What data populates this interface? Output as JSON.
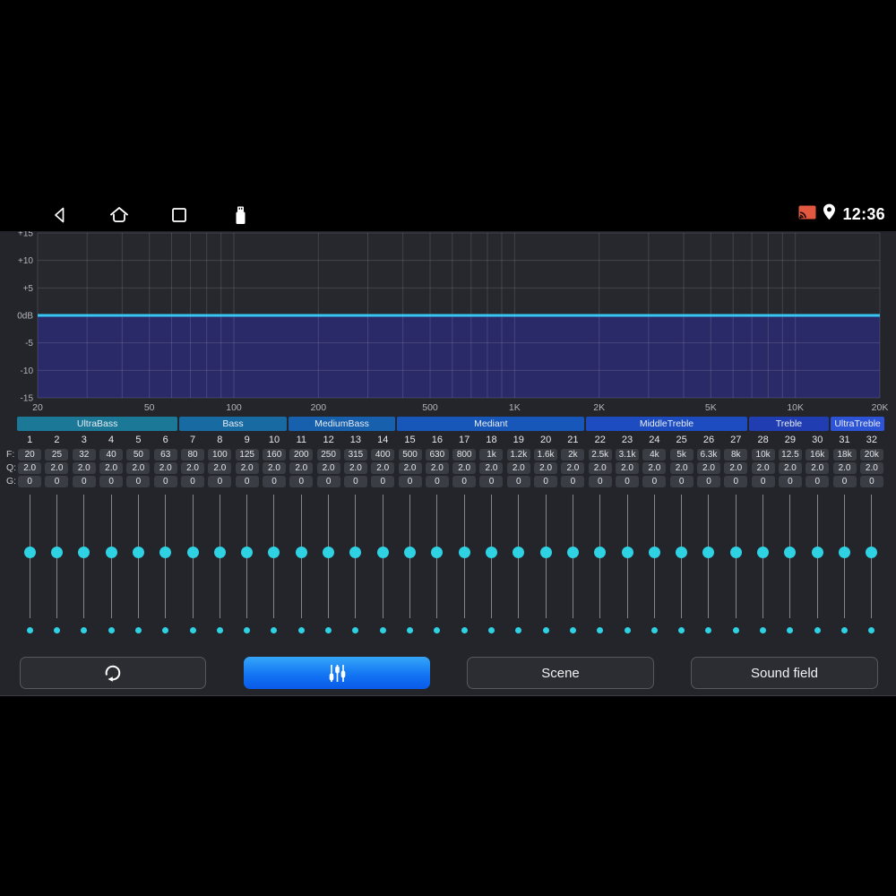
{
  "status_bar": {
    "time": "12:36",
    "left_icons": [
      "back-icon",
      "home-icon",
      "recents-icon",
      "usb-icon"
    ],
    "right_icons": [
      "cast-icon",
      "location-icon"
    ],
    "cast_icon_color": "#e2573f"
  },
  "eq_graph": {
    "db_ticks": [
      {
        "label": "+15",
        "value": 15
      },
      {
        "label": "+10",
        "value": 10
      },
      {
        "label": "+5",
        "value": 5
      },
      {
        "label": "0dB",
        "value": 0
      },
      {
        "label": "-5",
        "value": -5
      },
      {
        "label": "-10",
        "value": -10
      },
      {
        "label": "-15",
        "value": -15
      }
    ],
    "freq_ticks": [
      {
        "label": "20",
        "value": 20
      },
      {
        "label": "50",
        "value": 50
      },
      {
        "label": "100",
        "value": 100
      },
      {
        "label": "200",
        "value": 200
      },
      {
        "label": "500",
        "value": 500
      },
      {
        "label": "1K",
        "value": 1000
      },
      {
        "label": "2K",
        "value": 2000
      },
      {
        "label": "5K",
        "value": 5000
      },
      {
        "label": "10K",
        "value": 10000
      },
      {
        "label": "20K",
        "value": 20000
      }
    ],
    "minor_grid_freqs": [
      20,
      30,
      40,
      50,
      60,
      70,
      80,
      90,
      100,
      200,
      300,
      400,
      500,
      600,
      700,
      800,
      900,
      1000,
      2000,
      3000,
      4000,
      5000,
      6000,
      7000,
      8000,
      9000,
      10000,
      20000
    ],
    "freq_min": 20,
    "freq_max": 20000,
    "db_min": -15,
    "db_max": 15,
    "curve_db": 0,
    "curve_color": "#38c6f4",
    "fill_color": "#2b2a68",
    "plot_bg": "#26282e",
    "grid_color": "rgba(255,255,255,0.13)",
    "label_color": "#b2b5ba"
  },
  "band_groups": [
    {
      "label": "UltraBass",
      "span": 6,
      "color": "#1b7897"
    },
    {
      "label": "Bass",
      "span": 4,
      "color": "#186ba2"
    },
    {
      "label": "MediumBass",
      "span": 4,
      "color": "#1660ae"
    },
    {
      "label": "Mediant",
      "span": 7,
      "color": "#1757ba"
    },
    {
      "label": "MiddleTreble",
      "span": 6,
      "color": "#1c4cc0"
    },
    {
      "label": "Treble",
      "span": 3,
      "color": "#203eb2"
    },
    {
      "label": "UltraTreble",
      "span": 2,
      "color": "#2d53d6"
    }
  ],
  "band_table": {
    "row_labels": [
      "F:",
      "Q:",
      "G:"
    ],
    "numbers": [
      "1",
      "2",
      "3",
      "4",
      "5",
      "6",
      "7",
      "8",
      "9",
      "10",
      "11",
      "12",
      "13",
      "14",
      "15",
      "16",
      "17",
      "18",
      "19",
      "20",
      "21",
      "22",
      "23",
      "24",
      "25",
      "26",
      "27",
      "28",
      "29",
      "30",
      "31",
      "32"
    ],
    "f_values": [
      "20",
      "25",
      "32",
      "40",
      "50",
      "63",
      "80",
      "100",
      "125",
      "160",
      "200",
      "250",
      "315",
      "400",
      "500",
      "630",
      "800",
      "1k",
      "1.2k",
      "1.6k",
      "2k",
      "2.5k",
      "3.1k",
      "4k",
      "5k",
      "6.3k",
      "8k",
      "10k",
      "12.5",
      "16k",
      "18k",
      "20k"
    ],
    "q_values": [
      "2.0",
      "2.0",
      "2.0",
      "2.0",
      "2.0",
      "2.0",
      "2.0",
      "2.0",
      "2.0",
      "2.0",
      "2.0",
      "2.0",
      "2.0",
      "2.0",
      "2.0",
      "2.0",
      "2.0",
      "2.0",
      "2.0",
      "2.0",
      "2.0",
      "2.0",
      "2.0",
      "2.0",
      "2.0",
      "2.0",
      "2.0",
      "2.0",
      "2.0",
      "2.0",
      "2.0",
      "2.0"
    ],
    "g_values": [
      "0",
      "0",
      "0",
      "0",
      "0",
      "0",
      "0",
      "0",
      "0",
      "0",
      "0",
      "0",
      "0",
      "0",
      "0",
      "0",
      "0",
      "0",
      "0",
      "0",
      "0",
      "0",
      "0",
      "0",
      "0",
      "0",
      "0",
      "0",
      "0",
      "0",
      "0",
      "0"
    ]
  },
  "sliders": {
    "count": 32,
    "knob_color": "#2fd2e2",
    "dot_color": "#2fd2e2",
    "value_ratio": 0.47
  },
  "buttons": {
    "reset_icon": "reset-icon",
    "equalizer_icon": "equalizer-sliders-icon",
    "scene_label": "Scene",
    "sound_field_label": "Sound field",
    "active_button": "equalizer"
  }
}
